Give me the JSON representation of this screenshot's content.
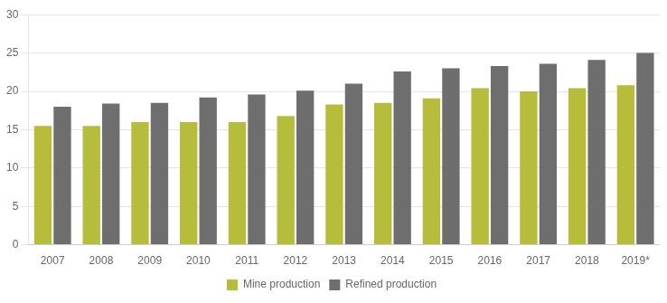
{
  "chart_data": {
    "type": "bar",
    "categories": [
      "2007",
      "2008",
      "2009",
      "2010",
      "2011",
      "2012",
      "2013",
      "2014",
      "2015",
      "2016",
      "2017",
      "2018",
      "2019*"
    ],
    "series": [
      {
        "name": "Mine production",
        "color": "#b5bd3b",
        "values": [
          15.5,
          15.5,
          16.0,
          16.0,
          16.0,
          16.8,
          18.3,
          18.5,
          19.1,
          20.4,
          20.0,
          20.4,
          20.8
        ]
      },
      {
        "name": "Refined production",
        "color": "#6e6e6e",
        "values": [
          18.0,
          18.4,
          18.5,
          19.2,
          19.6,
          20.1,
          21.0,
          22.6,
          23.0,
          23.3,
          23.6,
          24.1,
          25.0
        ]
      }
    ],
    "ylim": [
      0,
      30
    ],
    "yticks": [
      0,
      5,
      10,
      15,
      20,
      25,
      30
    ],
    "grid": true,
    "legend": "bottom"
  }
}
